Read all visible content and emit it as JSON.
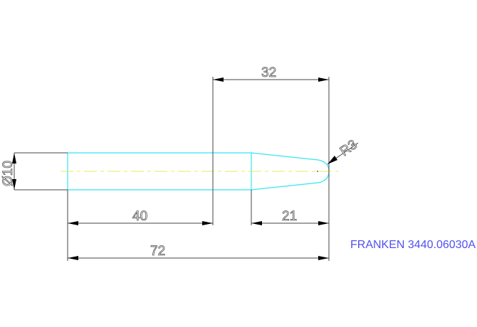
{
  "dimensions": {
    "diameter": "Ø10",
    "taper_length": "32",
    "shank_length": "40",
    "tip_length": "21",
    "total_length": "72",
    "radius": "R3"
  },
  "note": "FRANKEN 3440.06030A",
  "colors": {
    "part_outline": "#33e6f0",
    "centerline": "#e8e860",
    "note_text": "#5050f0",
    "dimension": "#444444"
  }
}
